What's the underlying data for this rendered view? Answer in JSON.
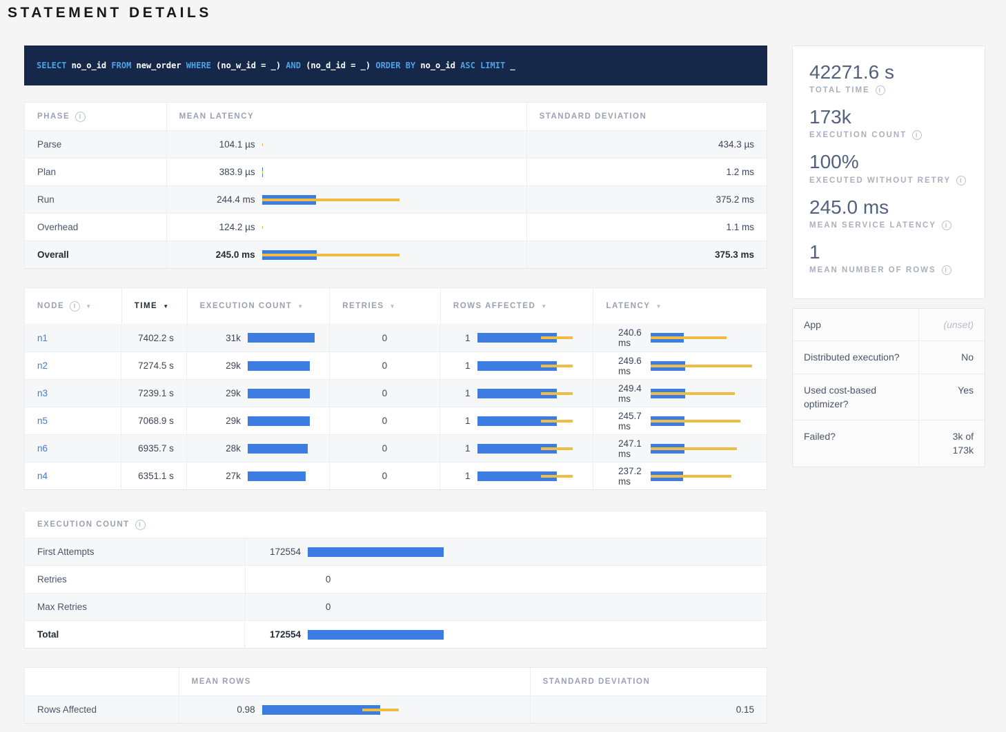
{
  "icons": {
    "info": "i",
    "sort_desc": "▼"
  },
  "page": {
    "title": "STATEMENT DETAILS"
  },
  "sql": {
    "tokens": [
      {
        "text": "SELECT",
        "type": "kw"
      },
      {
        "text": " no_o_id ",
        "type": "id"
      },
      {
        "text": "FROM",
        "type": "kw"
      },
      {
        "text": " new_order ",
        "type": "id"
      },
      {
        "text": "WHERE",
        "type": "kw"
      },
      {
        "text": " (no_w_id = _) ",
        "type": "id"
      },
      {
        "text": "AND",
        "type": "kw"
      },
      {
        "text": " (no_d_id = _) ",
        "type": "id"
      },
      {
        "text": "ORDER BY",
        "type": "kw"
      },
      {
        "text": " no_o_id ",
        "type": "id"
      },
      {
        "text": "ASC LIMIT",
        "type": "kw"
      },
      {
        "text": " _",
        "type": "id"
      }
    ]
  },
  "phase_table": {
    "headers": {
      "phase": "PHASE",
      "mean": "MEAN LATENCY",
      "std": "STANDARD DEVIATION"
    },
    "scale_ms": 621,
    "rows": [
      {
        "phase": "Parse",
        "mean": "104.1 µs",
        "std": "434.3 µs",
        "mean_ms": 0.1041,
        "std_ms": 0.4343
      },
      {
        "phase": "Plan",
        "mean": "383.9 µs",
        "std": "1.2 ms",
        "mean_ms": 0.3839,
        "std_ms": 1.2
      },
      {
        "phase": "Run",
        "mean": "244.4 ms",
        "std": "375.2 ms",
        "mean_ms": 244.4,
        "std_ms": 375.2
      },
      {
        "phase": "Overhead",
        "mean": "124.2 µs",
        "std": "1.1 ms",
        "mean_ms": 0.1242,
        "std_ms": 1.1
      },
      {
        "phase": "Overall",
        "mean": "245.0 ms",
        "std": "375.3 ms",
        "mean_ms": 245.0,
        "std_ms": 375.3
      }
    ]
  },
  "node_table": {
    "headers": {
      "node": "NODE",
      "time": "TIME",
      "exec": "EXECUTION COUNT",
      "retries": "RETRIES",
      "rows": "ROWS AFFECTED",
      "latency": "LATENCY"
    },
    "exec_scale": 32000,
    "rows_scale": 1.3,
    "latency_scale_ms": 750,
    "rows": [
      {
        "node": "n1",
        "time": "7402.2 s",
        "exec": "31k",
        "exec_val": 31000,
        "retries": "0",
        "rows": "1",
        "rows_mean": 1,
        "rows_std": 0.2,
        "latency": "240.6 ms",
        "lat_mean": 240.6,
        "lat_std": 307
      },
      {
        "node": "n2",
        "time": "7274.5 s",
        "exec": "29k",
        "exec_val": 29000,
        "retries": "0",
        "rows": "1",
        "rows_mean": 1,
        "rows_std": 0.2,
        "latency": "249.6 ms",
        "lat_mean": 249.6,
        "lat_std": 483
      },
      {
        "node": "n3",
        "time": "7239.1 s",
        "exec": "29k",
        "exec_val": 29000,
        "retries": "0",
        "rows": "1",
        "rows_mean": 1,
        "rows_std": 0.2,
        "latency": "249.4 ms",
        "lat_mean": 249.4,
        "lat_std": 360
      },
      {
        "node": "n5",
        "time": "7068.9 s",
        "exec": "29k",
        "exec_val": 29000,
        "retries": "0",
        "rows": "1",
        "rows_mean": 1,
        "rows_std": 0.2,
        "latency": "245.7 ms",
        "lat_mean": 245.7,
        "lat_std": 403
      },
      {
        "node": "n6",
        "time": "6935.7 s",
        "exec": "28k",
        "exec_val": 28000,
        "retries": "0",
        "rows": "1",
        "rows_mean": 1,
        "rows_std": 0.2,
        "latency": "247.1 ms",
        "lat_mean": 247.1,
        "lat_std": 378
      },
      {
        "node": "n4",
        "time": "6351.1 s",
        "exec": "27k",
        "exec_val": 27000,
        "retries": "0",
        "rows": "1",
        "rows_mean": 1,
        "rows_std": 0.2,
        "latency": "237.2 ms",
        "lat_mean": 237.2,
        "lat_std": 350
      }
    ]
  },
  "exec_table": {
    "title": "EXECUTION COUNT",
    "scale": 570000,
    "rows": [
      {
        "label": "First Attempts",
        "value": "172554",
        "val": 172554
      },
      {
        "label": "Retries",
        "value": "0",
        "val": 0
      },
      {
        "label": "Max Retries",
        "value": "0",
        "val": 0
      },
      {
        "label": "Total",
        "value": "172554",
        "val": 172554
      }
    ]
  },
  "rows_table": {
    "headers": {
      "mean": "MEAN ROWS",
      "std": "STANDARD DEVIATION"
    },
    "scale": 1.17,
    "row": {
      "label": "Rows Affected",
      "mean": "0.98",
      "std": "0.15",
      "mean_val": 0.98,
      "std_val": 0.15
    }
  },
  "summary": {
    "stats": [
      {
        "value": "42271.6 s",
        "label": "TOTAL TIME"
      },
      {
        "value": "173k",
        "label": "EXECUTION COUNT"
      },
      {
        "value": "100%",
        "label": "EXECUTED WITHOUT RETRY"
      },
      {
        "value": "245.0 ms",
        "label": "MEAN SERVICE LATENCY"
      },
      {
        "value": "1",
        "label": "MEAN NUMBER OF ROWS"
      }
    ],
    "details": [
      {
        "label": "App",
        "value": "(unset)"
      },
      {
        "label": "Distributed execution?",
        "value": "No"
      },
      {
        "label": "Used cost-based optimizer?",
        "value": "Yes"
      },
      {
        "label": "Failed?",
        "value": "3k of 173k"
      }
    ]
  },
  "colors": {
    "bar_blue": "#3d7ce0",
    "bar_yellow": "#f0bc42",
    "sql_bg": "#152849"
  }
}
